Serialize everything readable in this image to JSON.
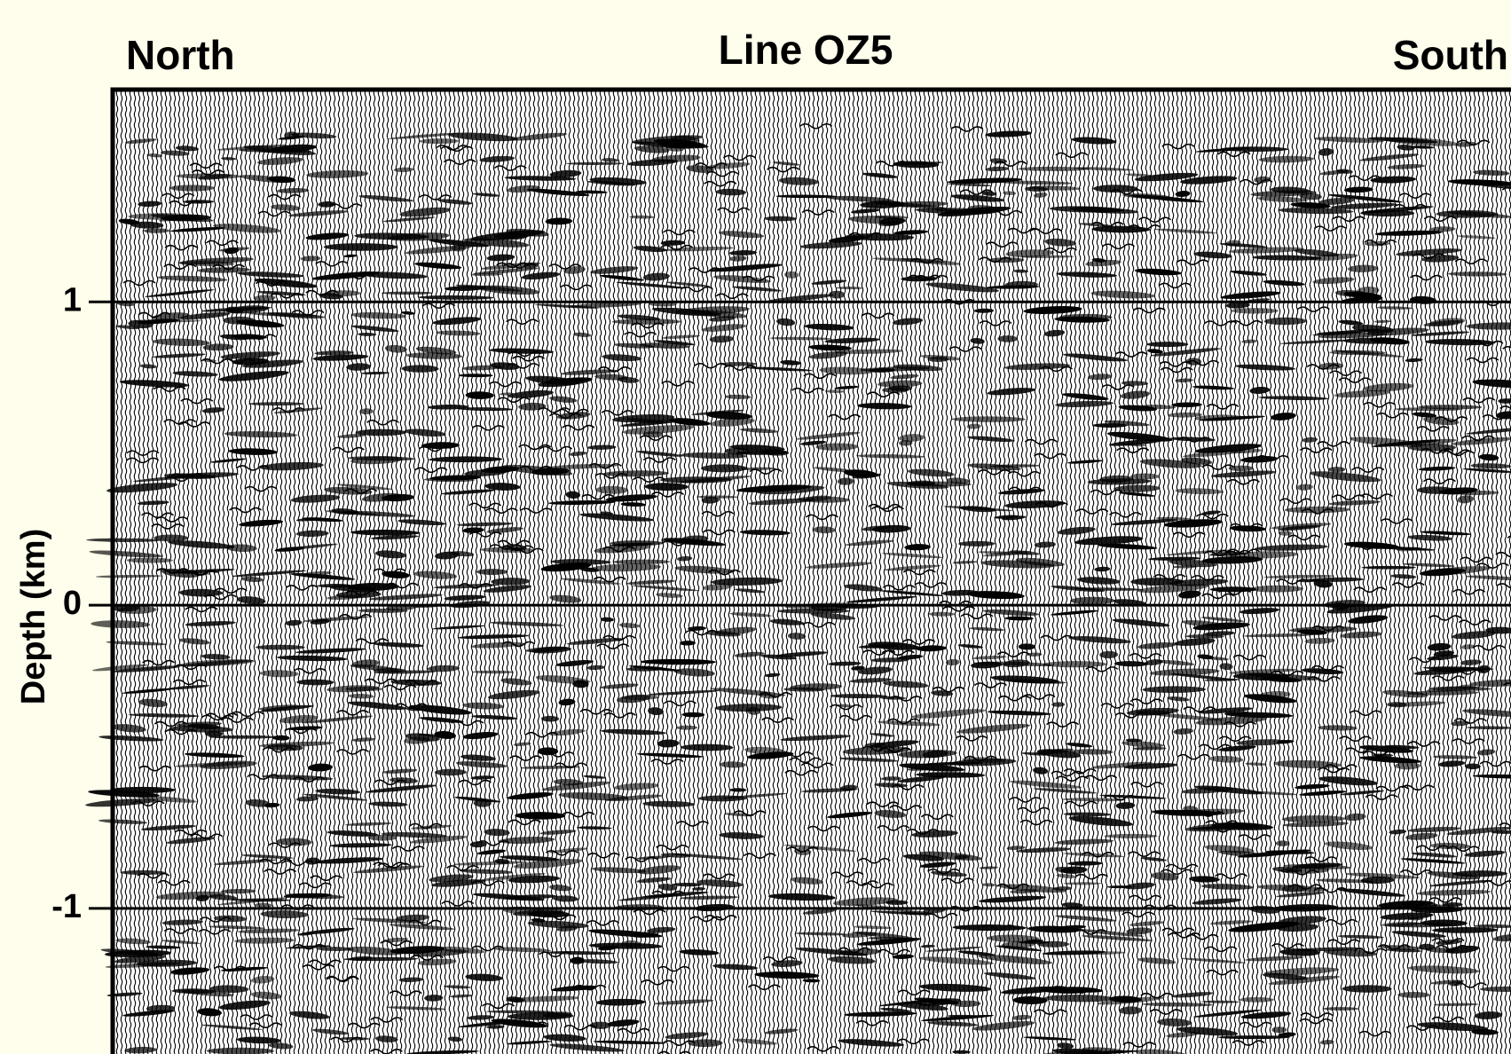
{
  "chart_data": {
    "type": "seismic",
    "title": "Line OZ5",
    "left_label": "North",
    "right_label": "South",
    "y_label": "Depth (km)",
    "ylim": [
      -1.48,
      1.7
    ],
    "yticks": [
      -1,
      0,
      1
    ],
    "grid": true
  }
}
